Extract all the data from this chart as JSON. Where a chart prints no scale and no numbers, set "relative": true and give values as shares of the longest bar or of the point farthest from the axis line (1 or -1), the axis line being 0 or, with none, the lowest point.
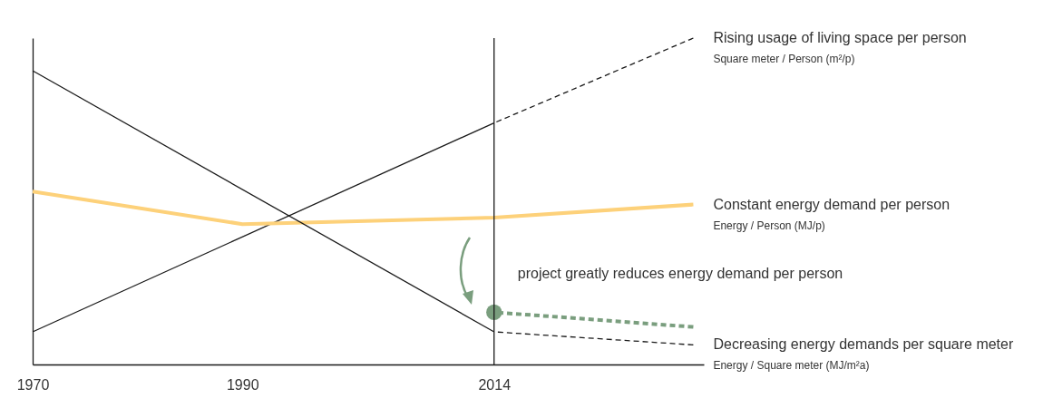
{
  "chart_data": {
    "type": "line",
    "relative": true,
    "xlim": [
      1970,
      2034
    ],
    "xticks": [
      1970,
      1990,
      2014
    ],
    "series": [
      {
        "x": [
          1970,
          2014
        ],
        "values": [
          0.1,
          0.74
        ],
        "color": "#1a1a1a"
      },
      {
        "name": "Rising usage of living space per person",
        "x": [
          2014,
          2033
        ],
        "values": [
          0.74,
          1.0
        ],
        "color": "#1a1a1a",
        "line_style": "dashed"
      },
      {
        "name": "Constant energy demand per person",
        "x": [
          1970,
          1990,
          2014,
          2033
        ],
        "values": [
          0.53,
          0.43,
          0.45,
          0.49
        ],
        "color": "#fdd17a"
      },
      {
        "x": [
          1970,
          2014
        ],
        "values": [
          0.9,
          0.1
        ],
        "color": "#1a1a1a"
      },
      {
        "name": "Decreasing energy demands per square meter",
        "x": [
          2014,
          2033
        ],
        "values": [
          0.1,
          0.06
        ],
        "color": "#1a1a1a",
        "line_style": "dashed"
      },
      {
        "type": "scatter",
        "x": [
          2014
        ],
        "values": [
          0.16
        ],
        "color": "#7a9e7e",
        "marker": "circle"
      },
      {
        "x": [
          2014,
          2033
        ],
        "values": [
          0.16,
          0.115
        ],
        "color": "#7a9e7e",
        "line_style": "dashed"
      }
    ],
    "ref_lines": [
      {
        "axis": "x",
        "value": 2014,
        "color": "#1a1a1a"
      }
    ],
    "annotations": [
      "Square meter / Person (m²/p)",
      "Energy / Person (MJ/p)",
      "Energy / Square meter (MJ/m²a)",
      "project greatly reduces energy demand per person"
    ]
  }
}
